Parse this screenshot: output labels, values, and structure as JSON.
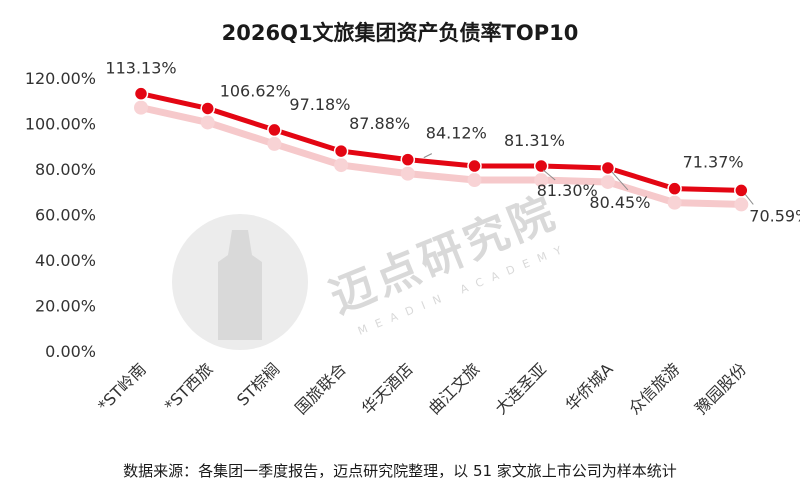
{
  "chart_data": {
    "type": "line",
    "title": "2026Q1文旅集团资产负债率TOP10",
    "categories": [
      "*ST岭南",
      "*ST西旅",
      "ST棕榈",
      "国旅联合",
      "华天酒店",
      "曲江文旅",
      "大连圣亚",
      "华侨城A",
      "众信旅游",
      "豫园股份"
    ],
    "series": [
      {
        "values": [
          113.13,
          106.62,
          97.18,
          87.88,
          84.12,
          81.31,
          81.3,
          80.45,
          71.37,
          70.59
        ],
        "labels": [
          "113.13%",
          "106.62%",
          "97.18%",
          "87.88%",
          "84.12%",
          "81.31%",
          "81.30%",
          "80.45%",
          "71.37%",
          "70.59%"
        ]
      }
    ],
    "ylim": [
      0,
      120
    ],
    "yticks": [
      "0.00%",
      "20.00%",
      "40.00%",
      "60.00%",
      "80.00%",
      "100.00%",
      "120.00%"
    ],
    "grid": false,
    "legend": "none",
    "line_color": "#e30613",
    "source": "数据来源：各集团一季度报告，迈点研究院整理，以 51 家文旅上市公司为样本统计",
    "watermark": {
      "text": "迈点研究院",
      "sub": "MEADIN ACADEMY"
    }
  }
}
